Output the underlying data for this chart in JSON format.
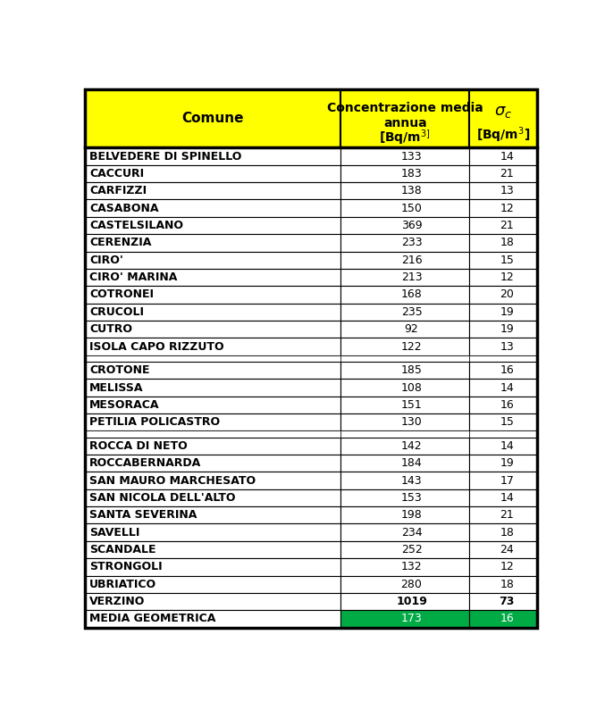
{
  "header_col0": "Comune",
  "header_col1": "Concentrazione media\nannua\n[Bq/m³]",
  "header_col2": "σ₀\n[Bq/m³]",
  "rows": [
    [
      "BELVEDERE DI SPINELLO",
      "133",
      "14",
      false
    ],
    [
      "CACCURI",
      "183",
      "21",
      false
    ],
    [
      "CARFIZZI",
      "138",
      "13",
      false
    ],
    [
      "CASABONA",
      "150",
      "12",
      false
    ],
    [
      "CASTELSILANO",
      "369",
      "21",
      false
    ],
    [
      "CERENZIA",
      "233",
      "18",
      false
    ],
    [
      "CIRO'",
      "216",
      "15",
      false
    ],
    [
      "CIRO' MARINA",
      "213",
      "12",
      false
    ],
    [
      "COTRONEI",
      "168",
      "20",
      false
    ],
    [
      "CRUCOLI",
      "235",
      "19",
      false
    ],
    [
      "CUTRO",
      "92",
      "19",
      false
    ],
    [
      "ISOLA CAPO RIZZUTO",
      "122",
      "13",
      false
    ],
    [
      "",
      "",
      "",
      false
    ],
    [
      "CROTONE",
      "185",
      "16",
      false
    ],
    [
      "MELISSA",
      "108",
      "14",
      false
    ],
    [
      "MESORACA",
      "151",
      "16",
      false
    ],
    [
      "PETILIA POLICASTRO",
      "130",
      "15",
      false
    ],
    [
      "",
      "",
      "",
      false
    ],
    [
      "ROCCA DI NETO",
      "142",
      "14",
      false
    ],
    [
      "ROCCABERNARDA",
      "184",
      "19",
      false
    ],
    [
      "SAN MAURO MARCHESATO",
      "143",
      "17",
      false
    ],
    [
      "SAN NICOLA DELL'ALTO",
      "153",
      "14",
      false
    ],
    [
      "SANTA SEVERINA",
      "198",
      "21",
      false
    ],
    [
      "SAVELLI",
      "234",
      "18",
      false
    ],
    [
      "SCANDALE",
      "252",
      "24",
      false
    ],
    [
      "STRONGOLI",
      "132",
      "12",
      false
    ],
    [
      "UBRIATICO",
      "280",
      "18",
      false
    ],
    [
      "VERZINO",
      "1019",
      "73",
      true
    ],
    [
      "MEDIA GEOMETRICA",
      "173",
      "16",
      false
    ]
  ],
  "header_bg": "#FFFF00",
  "header_text": "#000000",
  "row_bg": "#FFFFFF",
  "media_bg": "#00AA44",
  "media_text": "#FFFFFF",
  "border_color": "#000000",
  "figsize": [
    6.77,
    7.95
  ],
  "dpi": 100
}
